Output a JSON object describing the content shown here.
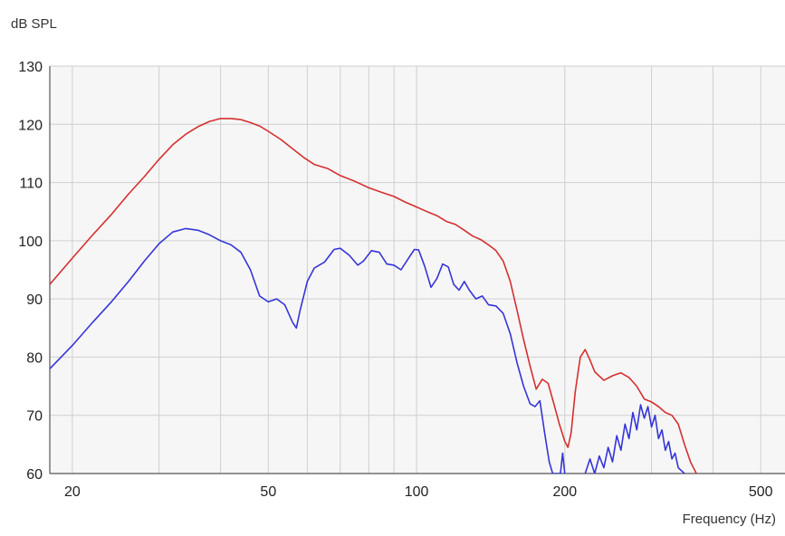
{
  "chart_data": {
    "type": "line",
    "ylabel": "dB SPL",
    "xlabel": "Frequency (Hz)",
    "xscale": "log",
    "xlim": [
      18,
      560
    ],
    "ylim": [
      60,
      130
    ],
    "yticks": [
      60,
      70,
      80,
      90,
      100,
      110,
      120,
      130
    ],
    "xticks": [
      20,
      50,
      100,
      200,
      500
    ],
    "xgrid_minor": [
      30,
      40,
      60,
      70,
      80,
      90,
      300,
      400
    ],
    "grid": true,
    "series": [
      {
        "color": "#d62f2f",
        "points": [
          [
            18,
            92.5
          ],
          [
            20,
            97
          ],
          [
            22,
            101
          ],
          [
            24,
            104.5
          ],
          [
            26,
            108
          ],
          [
            28,
            111
          ],
          [
            30,
            114
          ],
          [
            32,
            116.5
          ],
          [
            34,
            118.3
          ],
          [
            36,
            119.6
          ],
          [
            38,
            120.5
          ],
          [
            40,
            121
          ],
          [
            42,
            121
          ],
          [
            44,
            120.8
          ],
          [
            46,
            120.3
          ],
          [
            48,
            119.7
          ],
          [
            50,
            118.8
          ],
          [
            53,
            117.4
          ],
          [
            56,
            115.8
          ],
          [
            59,
            114.3
          ],
          [
            62,
            113.1
          ],
          [
            66,
            112.4
          ],
          [
            70,
            111.2
          ],
          [
            75,
            110.2
          ],
          [
            80,
            109.1
          ],
          [
            85,
            108.3
          ],
          [
            90,
            107.6
          ],
          [
            95,
            106.6
          ],
          [
            100,
            105.8
          ],
          [
            105,
            105
          ],
          [
            110,
            104.3
          ],
          [
            115,
            103.3
          ],
          [
            120,
            102.8
          ],
          [
            125,
            101.8
          ],
          [
            130,
            100.8
          ],
          [
            135,
            100.2
          ],
          [
            140,
            99.3
          ],
          [
            145,
            98.3
          ],
          [
            150,
            96.5
          ],
          [
            155,
            93
          ],
          [
            160,
            88
          ],
          [
            165,
            83
          ],
          [
            170,
            78.5
          ],
          [
            175,
            74.5
          ],
          [
            180,
            76.2
          ],
          [
            185,
            75.5
          ],
          [
            190,
            72
          ],
          [
            195,
            68.5
          ],
          [
            200,
            65.5
          ],
          [
            203,
            64.5
          ],
          [
            206,
            67
          ],
          [
            210,
            74
          ],
          [
            215,
            80
          ],
          [
            220,
            81.3
          ],
          [
            225,
            79.5
          ],
          [
            230,
            77.5
          ],
          [
            240,
            76
          ],
          [
            250,
            76.8
          ],
          [
            260,
            77.3
          ],
          [
            270,
            76.5
          ],
          [
            280,
            75
          ],
          [
            290,
            72.8
          ],
          [
            300,
            72.3
          ],
          [
            310,
            71.5
          ],
          [
            320,
            70.5
          ],
          [
            330,
            70
          ],
          [
            340,
            68.5
          ],
          [
            350,
            65
          ],
          [
            360,
            62
          ],
          [
            370,
            60
          ]
        ]
      },
      {
        "color": "#3535d8",
        "points": [
          [
            18,
            78
          ],
          [
            20,
            82
          ],
          [
            22,
            86
          ],
          [
            24,
            89.5
          ],
          [
            26,
            93
          ],
          [
            28,
            96.5
          ],
          [
            30,
            99.5
          ],
          [
            32,
            101.5
          ],
          [
            34,
            102.1
          ],
          [
            36,
            101.8
          ],
          [
            38,
            101
          ],
          [
            40,
            100
          ],
          [
            42,
            99.3
          ],
          [
            44,
            98
          ],
          [
            46,
            95
          ],
          [
            48,
            90.5
          ],
          [
            50,
            89.5
          ],
          [
            52,
            90
          ],
          [
            54,
            89
          ],
          [
            56,
            86
          ],
          [
            57,
            85
          ],
          [
            58,
            88
          ],
          [
            60,
            93
          ],
          [
            62,
            95.3
          ],
          [
            65,
            96.3
          ],
          [
            68,
            98.5
          ],
          [
            70,
            98.7
          ],
          [
            73,
            97.5
          ],
          [
            76,
            95.8
          ],
          [
            78,
            96.5
          ],
          [
            81,
            98.3
          ],
          [
            84,
            98
          ],
          [
            87,
            96
          ],
          [
            90,
            95.8
          ],
          [
            93,
            95
          ],
          [
            96,
            96.8
          ],
          [
            99,
            98.5
          ],
          [
            101,
            98.4
          ],
          [
            104,
            95.5
          ],
          [
            107,
            92
          ],
          [
            110,
            93.5
          ],
          [
            113,
            96
          ],
          [
            116,
            95.5
          ],
          [
            119,
            92.5
          ],
          [
            122,
            91.5
          ],
          [
            125,
            93
          ],
          [
            128,
            91.5
          ],
          [
            132,
            90
          ],
          [
            136,
            90.5
          ],
          [
            140,
            89
          ],
          [
            145,
            88.8
          ],
          [
            150,
            87.5
          ],
          [
            155,
            84
          ],
          [
            160,
            79
          ],
          [
            165,
            75
          ],
          [
            170,
            72
          ],
          [
            174,
            71.5
          ],
          [
            178,
            72.5
          ],
          [
            182,
            67
          ],
          [
            186,
            62
          ],
          [
            189,
            60
          ],
          [
            196,
            60
          ],
          [
            198,
            63.5
          ],
          [
            200,
            60
          ]
        ]
      },
      {
        "color": "#3535d8",
        "points": [
          [
            220,
            60
          ],
          [
            225,
            62.5
          ],
          [
            230,
            60
          ],
          [
            235,
            63
          ],
          [
            240,
            61
          ],
          [
            245,
            64.5
          ],
          [
            250,
            62
          ],
          [
            255,
            66.5
          ],
          [
            260,
            64
          ],
          [
            265,
            68.5
          ],
          [
            270,
            66
          ],
          [
            275,
            70.5
          ],
          [
            280,
            67.5
          ],
          [
            285,
            71.8
          ],
          [
            290,
            69.5
          ],
          [
            295,
            71.5
          ],
          [
            300,
            68
          ],
          [
            305,
            70
          ],
          [
            310,
            66
          ],
          [
            315,
            67.5
          ],
          [
            320,
            64
          ],
          [
            325,
            65.5
          ],
          [
            330,
            62.5
          ],
          [
            335,
            63.5
          ],
          [
            340,
            61
          ],
          [
            345,
            60.5
          ],
          [
            350,
            60
          ]
        ]
      }
    ]
  }
}
